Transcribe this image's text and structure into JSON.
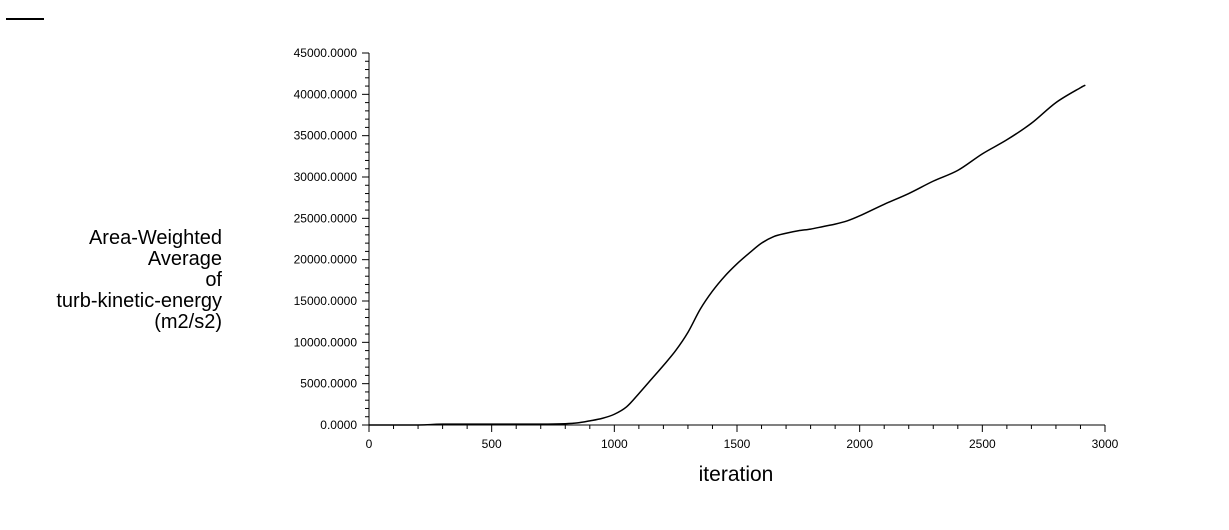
{
  "colors": {
    "line": "#000000",
    "axis": "#000000",
    "background": "#ffffff"
  },
  "chart_data": {
    "type": "line",
    "title": "",
    "xlabel": "iteration",
    "ylabel_lines": [
      "Area-Weighted",
      "Average",
      "of",
      "turb-kinetic-energy",
      "(m2/s2)"
    ],
    "xlim": [
      0,
      3000
    ],
    "ylim": [
      0,
      45000
    ],
    "x_ticks": [
      "0",
      "500",
      "1000",
      "1500",
      "2000",
      "2500",
      "3000"
    ],
    "y_ticks": [
      "0.0000",
      "5000.0000",
      "10000.0000",
      "15000.0000",
      "20000.0000",
      "25000.0000",
      "30000.0000",
      "35000.0000",
      "40000.0000",
      "45000.0000"
    ],
    "grid": false,
    "legend": "top-left",
    "series": [
      {
        "x": [
          0,
          200,
          300,
          500,
          700,
          800,
          850,
          900,
          950,
          1000,
          1050,
          1100,
          1150,
          1200,
          1250,
          1300,
          1350,
          1400,
          1450,
          1500,
          1550,
          1600,
          1650,
          1700,
          1750,
          1800,
          1850,
          1900,
          1950,
          2000,
          2100,
          2200,
          2300,
          2400,
          2500,
          2600,
          2700,
          2800,
          2900,
          2920
        ],
        "y": [
          0,
          0,
          100,
          100,
          100,
          150,
          250,
          500,
          800,
          1300,
          2200,
          3800,
          5500,
          7200,
          9000,
          11200,
          14000,
          16200,
          18000,
          19500,
          20800,
          22000,
          22800,
          23200,
          23500,
          23700,
          24000,
          24300,
          24700,
          25300,
          26700,
          28000,
          29500,
          30800,
          32800,
          34500,
          36500,
          39000,
          40800,
          41100
        ]
      }
    ]
  }
}
